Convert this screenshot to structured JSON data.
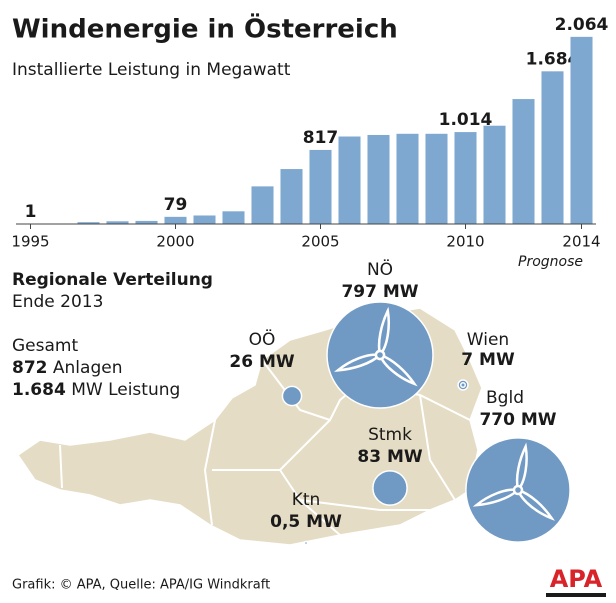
{
  "chart_data": {
    "type": "bar",
    "title": "Windenergie in Österreich",
    "subtitle": "Installierte Leistung in Megawatt",
    "x": [
      1995,
      1996,
      1997,
      1998,
      1999,
      2000,
      2001,
      2002,
      2003,
      2004,
      2005,
      2006,
      2007,
      2008,
      2009,
      2010,
      2011,
      2012,
      2013,
      2014
    ],
    "values": [
      1,
      3,
      20,
      30,
      34,
      79,
      94,
      140,
      415,
      606,
      817,
      965,
      982,
      995,
      995,
      1014,
      1084,
      1378,
      1684,
      2064
    ],
    "value_labels": [
      "1",
      null,
      null,
      null,
      null,
      "79",
      null,
      null,
      null,
      null,
      "817",
      null,
      null,
      null,
      null,
      "1.014",
      null,
      null,
      "1.684",
      "2.064"
    ],
    "xlim": [
      1994.5,
      2014.5
    ],
    "xticks": [
      1995,
      2000,
      2005,
      2010,
      2014
    ],
    "ylim": [
      0,
      2250
    ],
    "color": "#7fa8d0",
    "annotation": "Prognose"
  },
  "map": {
    "title": "Regionale Verteilung",
    "subtitle": "Ende 2013",
    "summary": {
      "label": "Gesamt",
      "count": "872",
      "count_unit": "Anlagen",
      "power": "1.684",
      "power_unit": "MW Leistung"
    },
    "regions": [
      {
        "name": "NÖ",
        "value": 797,
        "label": "797 MW"
      },
      {
        "name": "OÖ",
        "value": 26,
        "label": "26 MW"
      },
      {
        "name": "Wien",
        "value": 7,
        "label": "7 MW"
      },
      {
        "name": "Bgld",
        "value": 770,
        "label": "770 MW"
      },
      {
        "name": "Stmk",
        "value": 83,
        "label": "83 MW"
      },
      {
        "name": "Ktn",
        "value": 0.5,
        "label": "0,5 MW"
      }
    ],
    "color": "#7099c4"
  },
  "footer": {
    "source": "Grafik: © APA, Quelle: APA/IG Windkraft",
    "logo": "APA"
  }
}
